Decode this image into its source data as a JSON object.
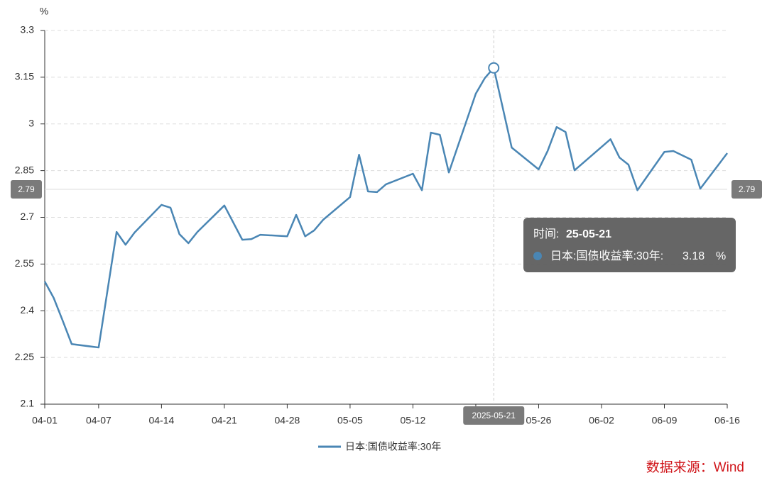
{
  "chart_data": {
    "type": "line",
    "y_unit": "%",
    "x": [
      "04-01",
      "04-02",
      "04-03",
      "04-04",
      "04-07",
      "04-09",
      "04-10",
      "04-11",
      "04-14",
      "04-15",
      "04-16",
      "04-17",
      "04-18",
      "04-21",
      "04-23",
      "04-24",
      "04-25",
      "04-28",
      "04-29",
      "04-30",
      "05-01",
      "05-02",
      "05-05",
      "05-06",
      "05-07",
      "05-08",
      "05-09",
      "05-12",
      "05-13",
      "05-14",
      "05-15",
      "05-16",
      "05-19",
      "05-20",
      "05-21",
      "05-23",
      "05-26",
      "05-27",
      "05-28",
      "05-29",
      "05-30",
      "06-03",
      "06-04",
      "06-05",
      "06-06",
      "06-09",
      "06-10",
      "06-12",
      "06-13",
      "06-16"
    ],
    "series": [
      {
        "name": "日本:国债收益率:30年",
        "color": "#4a86b4",
        "values": [
          2.494,
          2.441,
          2.368,
          2.293,
          2.282,
          2.653,
          2.612,
          2.651,
          2.74,
          2.731,
          2.646,
          2.617,
          2.653,
          2.738,
          2.628,
          2.63,
          2.644,
          2.639,
          2.708,
          2.639,
          2.658,
          2.692,
          2.765,
          2.901,
          2.783,
          2.781,
          2.806,
          2.84,
          2.787,
          2.972,
          2.965,
          2.844,
          3.097,
          3.147,
          3.18,
          2.924,
          2.854,
          2.913,
          2.99,
          2.974,
          2.851,
          2.951,
          2.892,
          2.869,
          2.787,
          2.91,
          2.913,
          2.885,
          2.792,
          2.906
        ]
      }
    ],
    "xticks": [
      "04-01",
      "04-07",
      "04-14",
      "04-21",
      "04-28",
      "05-05",
      "05-12",
      "05-19",
      "05-26",
      "06-02",
      "06-09",
      "06-16"
    ],
    "ylim": [
      2.1,
      3.3
    ],
    "yticks": [
      2.1,
      2.25,
      2.4,
      2.55,
      2.7,
      2.85,
      3,
      3.15,
      3.3
    ],
    "grid": true,
    "cursor_y_label": 2.79,
    "cursor_x_label": "2025-05-21",
    "tooltip": {
      "time_label": "时间:",
      "time": "25-05-21",
      "series_label": "日本:国债收益率:30年:",
      "value": 3.18,
      "unit": "%"
    },
    "source": "数据来源：Wind"
  }
}
